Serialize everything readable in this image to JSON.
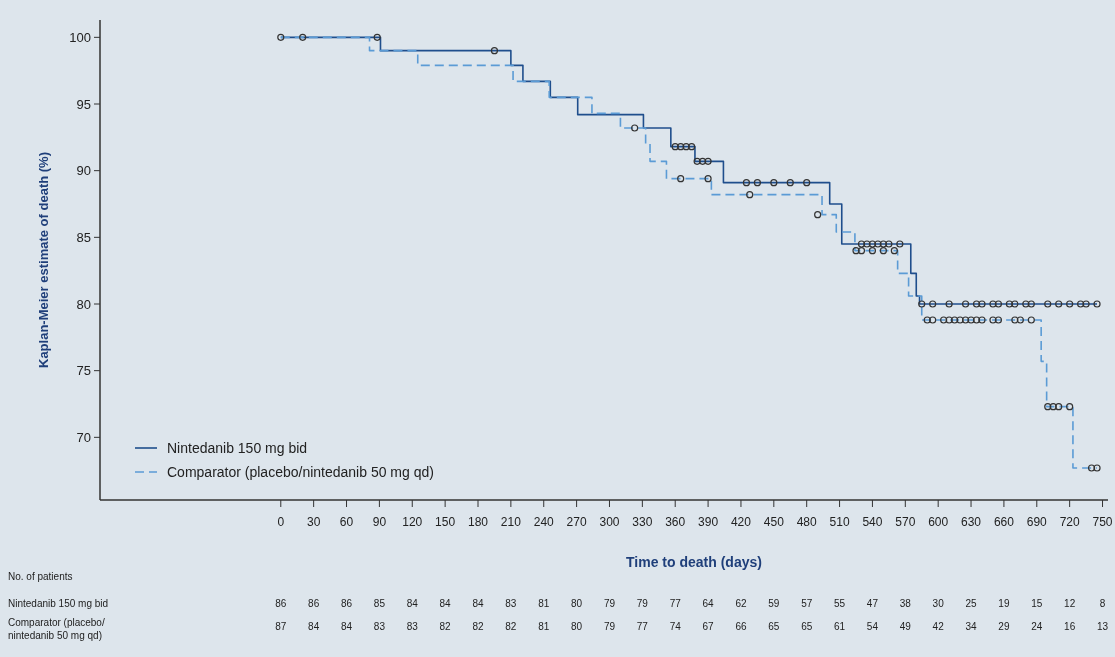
{
  "chart_data": {
    "type": "step",
    "xlabel": "Time to death (days)",
    "ylabel": "Kaplan-Meier estimate of death (%)",
    "xlim": [
      -165,
      755
    ],
    "xticks": [
      0,
      30,
      60,
      90,
      120,
      150,
      180,
      210,
      240,
      270,
      300,
      330,
      360,
      390,
      420,
      450,
      480,
      510,
      540,
      570,
      600,
      630,
      660,
      690,
      720,
      750
    ],
    "ylim": [
      65.3,
      101.3
    ],
    "yticks": [
      70,
      75,
      80,
      85,
      90,
      95,
      100
    ],
    "grid": false,
    "legend": "bottom left",
    "series": [
      {
        "name": "Nintedanib 150 mg bid",
        "color": "#1f4e8c",
        "line_style": "solid",
        "x": [
          0,
          91,
          210,
          221,
          246,
          271,
          331,
          356,
          378,
          404,
          501,
          512,
          575,
          580,
          583,
          745
        ],
        "values": [
          100,
          99.0,
          97.9,
          96.7,
          95.5,
          94.2,
          93.2,
          91.8,
          90.7,
          89.1,
          87.5,
          84.5,
          82.3,
          80.6,
          80.0,
          80.0
        ]
      },
      {
        "name": "Comparator (placebo/nintedanib 50 mg qd)",
        "color": "#5b9bd5",
        "line_style": "dashed",
        "x": [
          0,
          81,
          125,
          212,
          245,
          284,
          310,
          333,
          337,
          352,
          393,
          494,
          507,
          524,
          563,
          573,
          585,
          694,
          699,
          723,
          745
        ],
        "values": [
          100,
          99.0,
          97.9,
          96.7,
          95.5,
          94.3,
          93.2,
          92.0,
          90.7,
          89.4,
          88.2,
          86.7,
          85.4,
          84.0,
          82.3,
          80.6,
          78.8,
          75.7,
          72.3,
          67.7,
          67.7
        ]
      },
      {
        "type": "scatter",
        "marker": "circle",
        "color": "#333333",
        "x": [
          0,
          20,
          88,
          195,
          360,
          365,
          370,
          375,
          380,
          385,
          390,
          425,
          435,
          450,
          465,
          480,
          530,
          535,
          540,
          545,
          550,
          555,
          565,
          585,
          595,
          610,
          625,
          635,
          640,
          650,
          655,
          665,
          670,
          680,
          685,
          700,
          710,
          720,
          730,
          735,
          745
        ],
        "values": [
          100,
          100,
          100,
          99.0,
          91.8,
          91.8,
          91.8,
          91.8,
          90.7,
          90.7,
          90.7,
          89.1,
          89.1,
          89.1,
          89.1,
          89.1,
          84.5,
          84.5,
          84.5,
          84.5,
          84.5,
          84.5,
          84.5,
          80.0,
          80.0,
          80.0,
          80.0,
          80.0,
          80.0,
          80.0,
          80.0,
          80.0,
          80.0,
          80.0,
          80.0,
          80.0,
          80.0,
          80.0,
          80.0,
          80.0,
          80.0
        ]
      },
      {
        "type": "scatter",
        "marker": "circle",
        "color": "#333333",
        "x": [
          323,
          365,
          390,
          428,
          490,
          525,
          530,
          540,
          550,
          560,
          590,
          595,
          605,
          610,
          615,
          620,
          625,
          630,
          635,
          640,
          650,
          655,
          670,
          675,
          685,
          700,
          705,
          710,
          720,
          740,
          745
        ],
        "values": [
          93.2,
          89.4,
          89.4,
          88.2,
          86.7,
          84.0,
          84.0,
          84.0,
          84.0,
          84.0,
          78.8,
          78.8,
          78.8,
          78.8,
          78.8,
          78.8,
          78.8,
          78.8,
          78.8,
          78.8,
          78.8,
          78.8,
          78.8,
          78.8,
          78.8,
          72.3,
          72.3,
          72.3,
          72.3,
          67.7,
          67.7
        ]
      }
    ],
    "annotations": [
      "No. of patients",
      "Nintedanib 150 mg bid",
      "86 86 86 85 84 84 84 83 81 80 79 79 77 64 62 59 57 55 47 38 30 25 19 15 12 8",
      "Comparator (placebo/\nnintedanib 50 mg qd)",
      "87 84 84 83 83 82 82 82 81 80 79 77 74 67 66 65 65 61 54 49 42 34 29 24 16 13"
    ]
  }
}
